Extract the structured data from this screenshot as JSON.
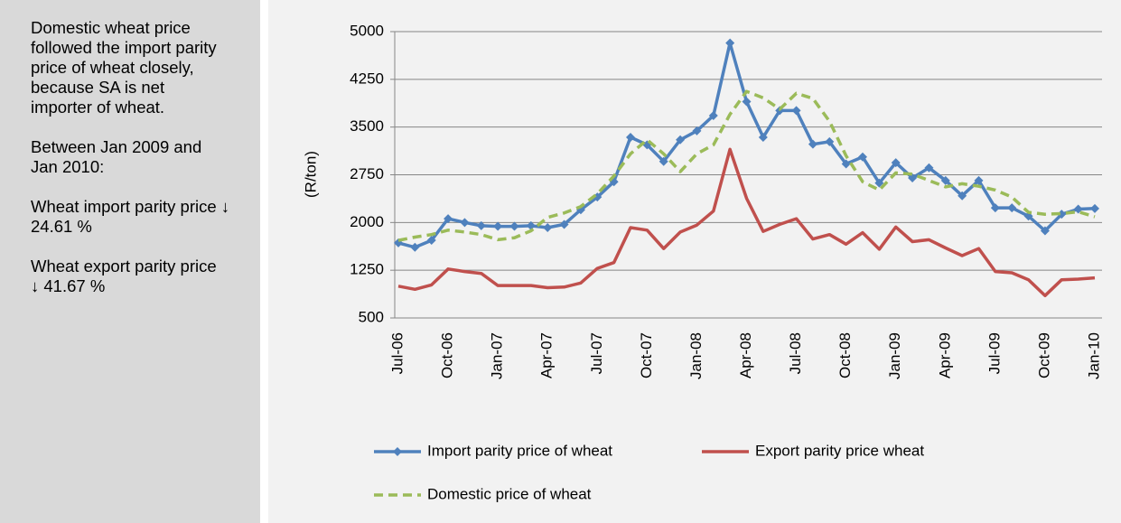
{
  "sidebar": {
    "paragraphs": [
      "Domestic wheat price followed the import parity price of wheat closely, because SA is net importer of wheat.",
      "Between Jan 2009 and Jan 2010:",
      "Wheat import parity price ↓ 24.61 %",
      "Wheat export parity price ↓ 41.67 %"
    ]
  },
  "chart_data": {
    "type": "line",
    "y_label": "(R/ton)",
    "categories": [
      "Jul-06",
      null,
      null,
      "Oct-06",
      null,
      null,
      "Jan-07",
      null,
      null,
      "Apr-07",
      null,
      null,
      "Jul-07",
      null,
      null,
      "Oct-07",
      null,
      null,
      "Jan-08",
      null,
      null,
      "Apr-08",
      null,
      null,
      "Jul-08",
      null,
      null,
      "Oct-08",
      null,
      null,
      "Jan-09",
      null,
      null,
      "Apr-09",
      null,
      null,
      "Jul-09",
      null,
      null,
      "Oct-09",
      null,
      null,
      "Jan-10"
    ],
    "series": [
      {
        "name": "Import parity price of wheat",
        "color": "#4f81bd",
        "marker": "diamond",
        "dashed": false,
        "values": [
          1680,
          1610,
          1720,
          2060,
          2000,
          1950,
          1940,
          1940,
          1950,
          1920,
          1970,
          2200,
          2400,
          2640,
          3340,
          3220,
          2960,
          3300,
          3440,
          3680,
          4820,
          3900,
          3340,
          3760,
          3760,
          3230,
          3270,
          2920,
          3030,
          2620,
          2940,
          2700,
          2860,
          2660,
          2420,
          2660,
          2230,
          2230,
          2100,
          1870,
          2130,
          2210,
          2220
        ]
      },
      {
        "name": "Export parity price wheat",
        "color": "#c0504d",
        "marker": null,
        "dashed": false,
        "values": [
          1000,
          950,
          1020,
          1270,
          1230,
          1200,
          1010,
          1010,
          1010,
          975,
          985,
          1050,
          1280,
          1370,
          1920,
          1880,
          1590,
          1850,
          1960,
          2180,
          3150,
          2380,
          1860,
          1970,
          2060,
          1740,
          1810,
          1660,
          1840,
          1580,
          1930,
          1700,
          1730,
          1600,
          1480,
          1590,
          1230,
          1210,
          1100,
          850,
          1100,
          1110,
          1130
        ]
      },
      {
        "name": "Domestic price of wheat",
        "color": "#9bbb59",
        "marker": null,
        "dashed": true,
        "values": [
          1720,
          1770,
          1810,
          1880,
          1850,
          1810,
          1730,
          1760,
          1870,
          2080,
          2150,
          2250,
          2450,
          2730,
          3080,
          3300,
          3080,
          2800,
          3080,
          3220,
          3700,
          4060,
          3960,
          3780,
          4030,
          3950,
          3590,
          3050,
          2640,
          2510,
          2780,
          2760,
          2660,
          2560,
          2610,
          2570,
          2510,
          2400,
          2160,
          2130,
          2140,
          2170,
          2090
        ]
      }
    ],
    "ylim": [
      500,
      5000
    ],
    "yticks": [
      500,
      1250,
      2000,
      2750,
      3500,
      4250,
      5000
    ],
    "grid": true
  }
}
